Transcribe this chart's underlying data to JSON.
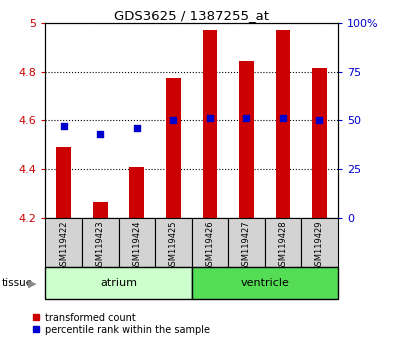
{
  "title": "GDS3625 / 1387255_at",
  "samples": [
    "GSM119422",
    "GSM119423",
    "GSM119424",
    "GSM119425",
    "GSM119426",
    "GSM119427",
    "GSM119428",
    "GSM119429"
  ],
  "red_values": [
    4.49,
    4.265,
    4.41,
    4.775,
    4.97,
    4.845,
    4.97,
    4.815
  ],
  "blue_values": [
    47,
    43,
    46,
    50,
    51,
    51,
    51,
    50
  ],
  "ylim_left": [
    4.2,
    5.0
  ],
  "ylim_right": [
    0,
    100
  ],
  "yticks_left": [
    4.2,
    4.4,
    4.6,
    4.8,
    5.0
  ],
  "ytick_labels_left": [
    "4.2",
    "4.4",
    "4.6",
    "4.8",
    "5"
  ],
  "yticks_right": [
    0,
    25,
    50,
    75,
    100
  ],
  "ytick_labels_right": [
    "0",
    "25",
    "50",
    "75",
    "100%"
  ],
  "tissue_groups": [
    {
      "label": "atrium",
      "indices": [
        0,
        1,
        2,
        3
      ],
      "color": "#ccffcc"
    },
    {
      "label": "ventricle",
      "indices": [
        4,
        5,
        6,
        7
      ],
      "color": "#55dd55"
    }
  ],
  "bar_color": "#cc0000",
  "dot_color": "#0000cc",
  "bar_width": 0.4,
  "background_xtick": "#d3d3d3",
  "tissue_label": "tissue",
  "legend_items": [
    "transformed count",
    "percentile rank within the sample"
  ]
}
